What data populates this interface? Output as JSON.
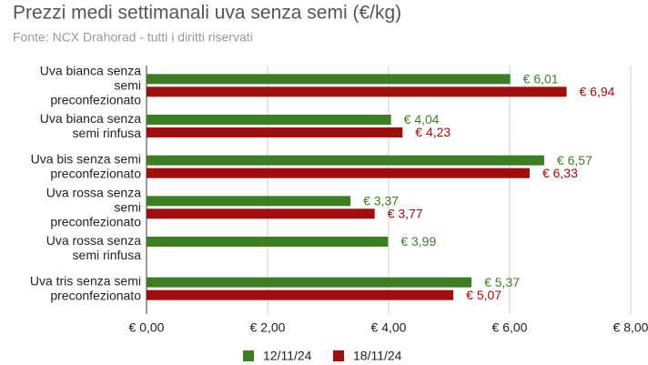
{
  "chart_data": {
    "type": "hbar",
    "title": "Prezzi medi settimanali uva senza semi (€/kg)",
    "subtitle": "Fonte: NCX Drahorad - tutti i diritti riservati",
    "categories": [
      "Uva bianca senza semi preconfezionato",
      "Uva bianca senza semi rinfusa",
      "Uva bis senza semi preconfezionato",
      "Uva rossa senza semi preconfezionato",
      "Uva rossa senza semi rinfusa",
      "Uva tris senza semi preconfezionato"
    ],
    "series": [
      {
        "name": "12/11/24",
        "color": "#3b7f22",
        "values": [
          6.01,
          4.04,
          6.57,
          3.37,
          3.99,
          5.37
        ],
        "value_labels": [
          "€ 6,01",
          "€ 4,04",
          "€ 6,57",
          "€ 3,37",
          "€ 3,99",
          "€ 5,37"
        ]
      },
      {
        "name": "18/11/24",
        "color": "#a00d0d",
        "values": [
          6.94,
          4.23,
          6.33,
          3.77,
          null,
          5.07
        ],
        "value_labels": [
          "€ 6,94",
          "€ 4,23",
          "€ 6,33",
          "€ 3,77",
          null,
          "€ 5,07"
        ]
      }
    ],
    "xlim": [
      0,
      8
    ],
    "xticks": [
      {
        "value": 0,
        "label": "€ 0,00"
      },
      {
        "value": 2,
        "label": "€ 2,00"
      },
      {
        "value": 4,
        "label": "€ 4,00"
      },
      {
        "value": 6,
        "label": "€ 6,00"
      },
      {
        "value": 8,
        "label": "€ 8,00"
      }
    ],
    "grid": true
  }
}
